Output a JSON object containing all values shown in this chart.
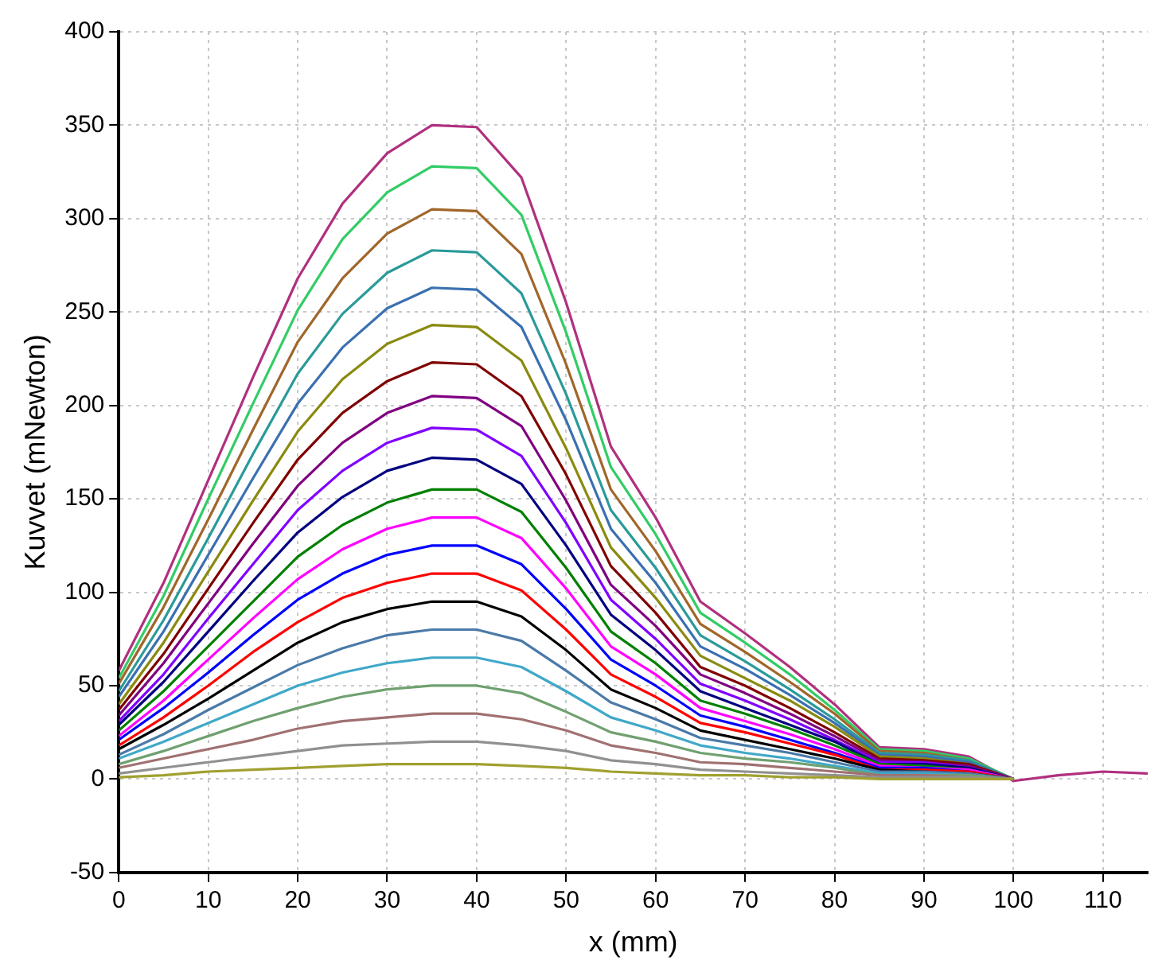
{
  "chart_data": {
    "type": "line",
    "xlabel": "x (mm)",
    "ylabel": "Kuvvet (mNewton)",
    "x": [
      0,
      5,
      10,
      15,
      20,
      25,
      30,
      35,
      40,
      45,
      50,
      55,
      60,
      65,
      70,
      75,
      80,
      85,
      90,
      95,
      100,
      105,
      110,
      115
    ],
    "xlim": [
      0,
      115
    ],
    "xticks": [
      0,
      10,
      20,
      30,
      40,
      50,
      60,
      70,
      80,
      90,
      100,
      110
    ],
    "ylim": [
      -50,
      400
    ],
    "yticks": [
      -50,
      0,
      50,
      100,
      150,
      200,
      250,
      300,
      350,
      400
    ],
    "grid": true,
    "legend": false,
    "marker": "none",
    "line_style": "solid",
    "series": [
      {
        "color": "#b0307f",
        "values": [
          58,
          105,
          160,
          215,
          268,
          308,
          335,
          350,
          349,
          322,
          255,
          178,
          140,
          95,
          78,
          60,
          40,
          17,
          16,
          12,
          -1,
          2,
          4,
          3
        ]
      },
      {
        "color": "#33cc66",
        "values": [
          54,
          98,
          150,
          201,
          251,
          289,
          314,
          328,
          327,
          302,
          239,
          167,
          131,
          89,
          73,
          56,
          37,
          16,
          15,
          11,
          0,
          null,
          null,
          null
        ]
      },
      {
        "color": "#a0662a",
        "values": [
          51,
          92,
          139,
          187,
          234,
          268,
          292,
          305,
          304,
          281,
          222,
          155,
          122,
          83,
          68,
          52,
          35,
          15,
          14,
          10,
          0,
          null,
          null,
          null
        ]
      },
      {
        "color": "#2a9a9a",
        "values": [
          47,
          85,
          129,
          174,
          217,
          249,
          271,
          283,
          282,
          260,
          206,
          144,
          113,
          77,
          63,
          48,
          32,
          14,
          13,
          10,
          0,
          null,
          null,
          null
        ]
      },
      {
        "color": "#3a70b0",
        "values": [
          44,
          79,
          120,
          161,
          201,
          231,
          252,
          263,
          262,
          242,
          192,
          134,
          105,
          71,
          59,
          45,
          30,
          13,
          12,
          9,
          0,
          null,
          null,
          null
        ]
      },
      {
        "color": "#8a8a10",
        "values": [
          40,
          73,
          111,
          149,
          186,
          214,
          233,
          243,
          242,
          224,
          177,
          124,
          97,
          66,
          54,
          42,
          28,
          12,
          11,
          8,
          0,
          null,
          null,
          null
        ]
      },
      {
        "color": "#800000",
        "values": [
          37,
          67,
          102,
          137,
          171,
          196,
          213,
          223,
          222,
          205,
          163,
          114,
          89,
          60,
          50,
          38,
          25,
          11,
          10,
          8,
          0,
          null,
          null,
          null
        ]
      },
      {
        "color": "#800080",
        "values": [
          34,
          62,
          94,
          126,
          157,
          180,
          196,
          205,
          204,
          189,
          149,
          104,
          82,
          56,
          46,
          35,
          23,
          10,
          9,
          7,
          0,
          null,
          null,
          null
        ]
      },
      {
        "color": "#8000ff",
        "values": [
          31,
          56,
          86,
          115,
          144,
          165,
          180,
          188,
          187,
          173,
          137,
          96,
          75,
          51,
          42,
          32,
          21,
          9,
          9,
          6,
          0,
          null,
          null,
          null
        ]
      },
      {
        "color": "#000080",
        "values": [
          29,
          52,
          79,
          106,
          132,
          151,
          165,
          172,
          171,
          158,
          125,
          88,
          69,
          47,
          38,
          29,
          20,
          8,
          8,
          6,
          0,
          null,
          null,
          null
        ]
      },
      {
        "color": "#008000",
        "values": [
          26,
          47,
          71,
          95,
          119,
          136,
          148,
          155,
          155,
          143,
          113,
          79,
          62,
          42,
          35,
          27,
          18,
          8,
          7,
          5,
          0,
          null,
          null,
          null
        ]
      },
      {
        "color": "#ff00ff",
        "values": [
          23,
          42,
          64,
          86,
          107,
          123,
          134,
          140,
          140,
          129,
          102,
          71,
          56,
          38,
          31,
          24,
          16,
          7,
          6,
          5,
          0,
          null,
          null,
          null
        ]
      },
      {
        "color": "#0000ff",
        "values": [
          21,
          38,
          57,
          77,
          96,
          110,
          120,
          125,
          125,
          115,
          91,
          64,
          50,
          34,
          28,
          21,
          14,
          6,
          6,
          4,
          0,
          null,
          null,
          null
        ]
      },
      {
        "color": "#ff0000",
        "values": [
          18,
          33,
          50,
          68,
          84,
          97,
          105,
          110,
          110,
          101,
          80,
          56,
          44,
          30,
          25,
          19,
          13,
          5,
          5,
          4,
          0,
          null,
          null,
          null
        ]
      },
      {
        "color": "#000000",
        "values": [
          16,
          29,
          43,
          58,
          73,
          84,
          91,
          95,
          95,
          87,
          69,
          48,
          38,
          26,
          21,
          16,
          11,
          5,
          4,
          3,
          0,
          null,
          null,
          null
        ]
      },
      {
        "color": "#4a7aa8",
        "values": [
          13,
          24,
          37,
          49,
          61,
          70,
          77,
          80,
          80,
          74,
          58,
          41,
          32,
          22,
          18,
          14,
          9,
          4,
          4,
          3,
          0,
          null,
          null,
          null
        ]
      },
      {
        "color": "#40a8c8",
        "values": [
          11,
          20,
          30,
          40,
          50,
          57,
          62,
          65,
          65,
          60,
          47,
          33,
          26,
          18,
          14,
          11,
          7,
          3,
          3,
          2,
          0,
          null,
          null,
          null
        ]
      },
      {
        "color": "#70a070",
        "values": [
          8,
          15,
          23,
          31,
          38,
          44,
          48,
          50,
          50,
          46,
          36,
          25,
          20,
          14,
          11,
          9,
          6,
          2,
          2,
          2,
          0,
          null,
          null,
          null
        ]
      },
      {
        "color": "#a07070",
        "values": [
          6,
          11,
          16,
          21,
          27,
          31,
          33,
          35,
          35,
          32,
          26,
          18,
          14,
          9,
          8,
          6,
          4,
          2,
          2,
          1,
          0,
          null,
          null,
          null
        ]
      },
      {
        "color": "#909090",
        "values": [
          3,
          6,
          9,
          12,
          15,
          18,
          19,
          20,
          20,
          18,
          15,
          10,
          8,
          5,
          4,
          3,
          2,
          1,
          1,
          1,
          0,
          null,
          null,
          null
        ]
      },
      {
        "color": "#a0a030",
        "values": [
          1,
          2,
          4,
          5,
          6,
          7,
          8,
          8,
          8,
          7,
          6,
          4,
          3,
          2,
          2,
          1,
          1,
          0,
          0,
          0,
          0,
          null,
          null,
          null
        ]
      }
    ]
  }
}
